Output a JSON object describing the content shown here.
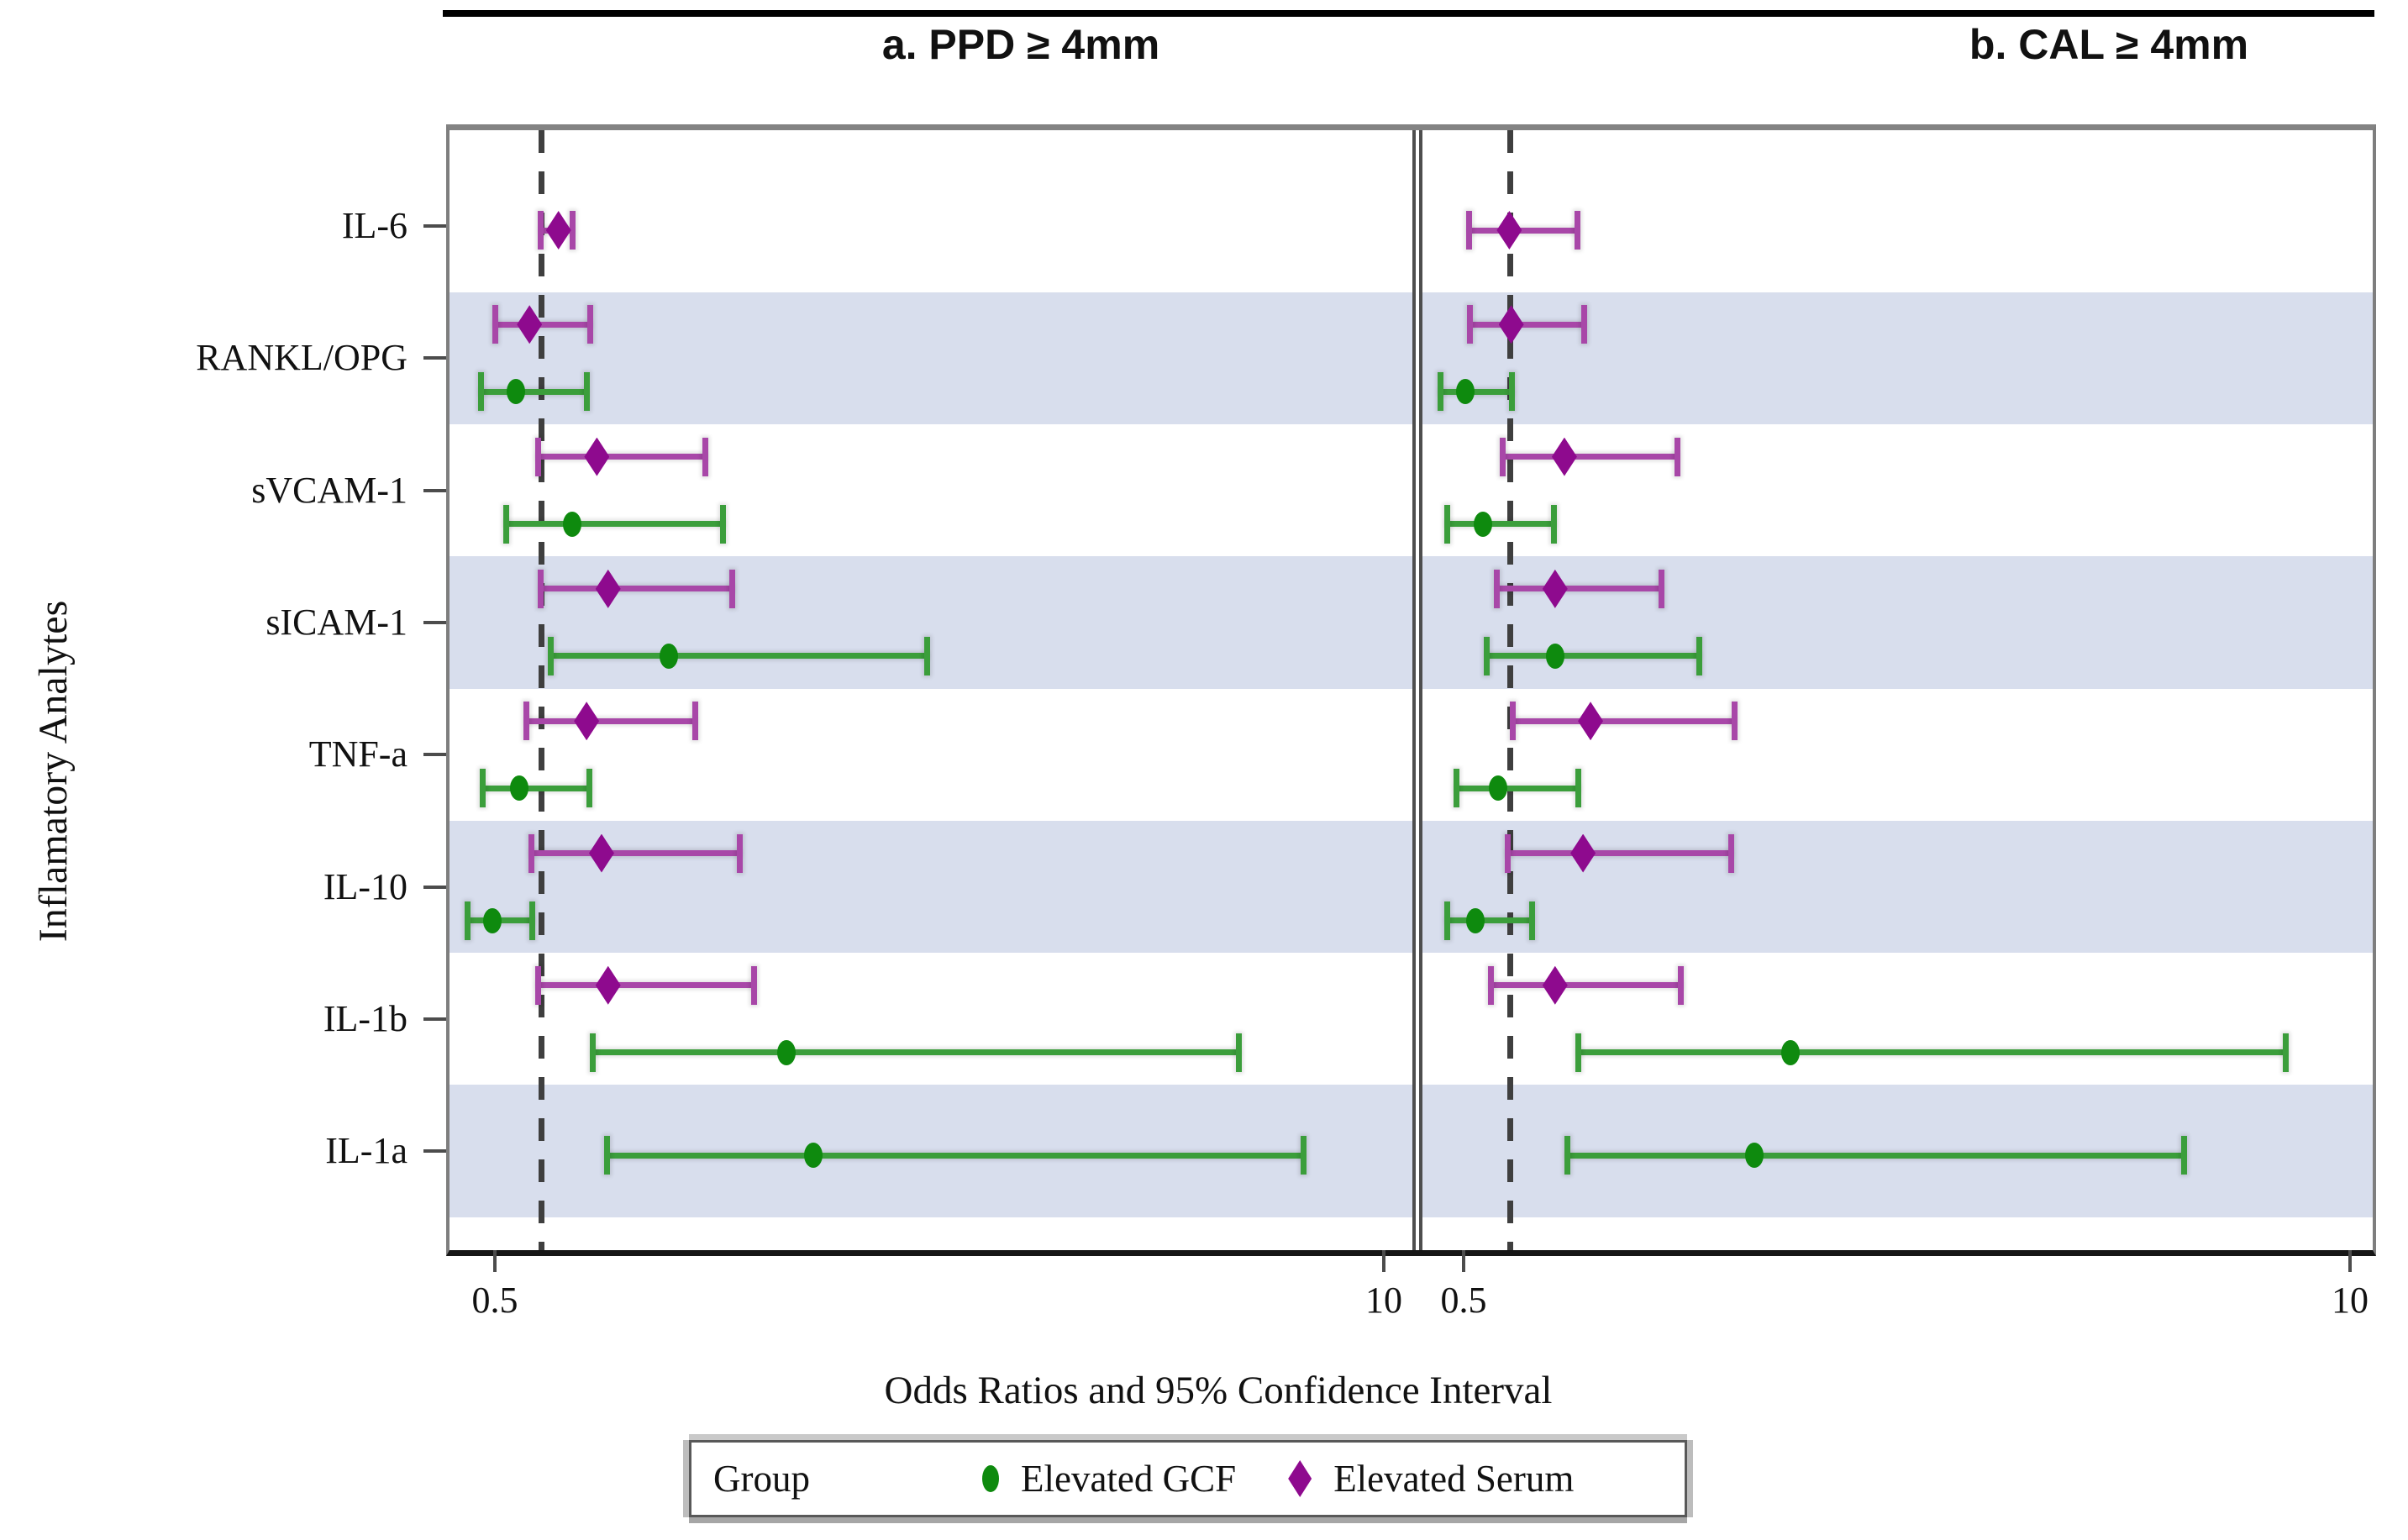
{
  "figure": {
    "y_axis_label": "Inflamatory Analytes",
    "x_axis_label": "Odds Ratios and 95% Confidence Interval"
  },
  "legend": {
    "title": "Group",
    "items": [
      {
        "label": "Elevated GCF",
        "marker": "circle-icon",
        "color": "#0E8A0E"
      },
      {
        "label": "Elevated Serum",
        "marker": "diamond-icon",
        "color": "#8E0A8E"
      }
    ]
  },
  "colors": {
    "gcf_marker": "#0E8A0E",
    "gcf_line": "#3B9E3B",
    "serum_marker": "#8E0A8E",
    "serum_line": "#A847A8",
    "band": "#D8DEED",
    "reference_line": "#3f3f3f"
  },
  "chart_data": {
    "type": "scatter",
    "subtype": "forest-plot-errorbars",
    "x_scale": "linear",
    "x_range": [
      0.5,
      10
    ],
    "x_ticks": [
      "0.5",
      "10"
    ],
    "reference_line_x": 1.0,
    "xlabel": "Odds Ratios and 95% Confidence Interval",
    "ylabel": "Inflamatory Analytes",
    "legend_position": "bottom",
    "grid": false,
    "categories": [
      "IL-6",
      "RANKL/OPG",
      "sVCAM-1",
      "sICAM-1",
      "TNF-a",
      "IL-10",
      "IL-1b",
      "IL-1a"
    ],
    "panels": [
      {
        "id": "a",
        "title": "a. PPD ≥ 4mm",
        "series": [
          {
            "name": "Elevated Serum",
            "values": [
              {
                "analyte": "IL-6",
                "or": 1.18,
                "lo": 0.99,
                "hi": 1.33
              },
              {
                "analyte": "RANKL/OPG",
                "or": 0.87,
                "lo": 0.5,
                "hi": 1.52
              },
              {
                "analyte": "sVCAM-1",
                "or": 1.59,
                "lo": 0.96,
                "hi": 2.75
              },
              {
                "analyte": "sICAM-1",
                "or": 1.71,
                "lo": 0.99,
                "hi": 3.04
              },
              {
                "analyte": "TNF-a",
                "or": 1.48,
                "lo": 0.84,
                "hi": 2.64
              },
              {
                "analyte": "IL-10",
                "or": 1.64,
                "lo": 0.89,
                "hi": 3.12
              },
              {
                "analyte": "IL-1b",
                "or": 1.71,
                "lo": 0.96,
                "hi": 3.27
              },
              {
                "analyte": "IL-1a",
                "or": null,
                "lo": null,
                "hi": null
              }
            ]
          },
          {
            "name": "Elevated GCF",
            "values": [
              {
                "analyte": "IL-6",
                "or": null,
                "lo": null,
                "hi": null
              },
              {
                "analyte": "RANKL/OPG",
                "or": 0.72,
                "lo": 0.35,
                "hi": 1.48
              },
              {
                "analyte": "sVCAM-1",
                "or": 1.33,
                "lo": 0.62,
                "hi": 2.94
              },
              {
                "analyte": "sICAM-1",
                "or": 2.36,
                "lo": 1.1,
                "hi": 5.12
              },
              {
                "analyte": "TNF-a",
                "or": 0.76,
                "lo": 0.37,
                "hi": 1.51
              },
              {
                "analyte": "IL-10",
                "or": 0.47,
                "lo": 0.21,
                "hi": 0.9
              },
              {
                "analyte": "IL-1b",
                "or": 3.62,
                "lo": 1.55,
                "hi": 8.45
              },
              {
                "analyte": "IL-1a",
                "or": 3.9,
                "lo": 1.7,
                "hi": 9.14
              }
            ]
          }
        ]
      },
      {
        "id": "b",
        "title": "b. CAL ≥ 4mm",
        "series": [
          {
            "name": "Elevated Serum",
            "values": [
              {
                "analyte": "IL-6",
                "or": 0.99,
                "lo": 0.56,
                "hi": 1.72
              },
              {
                "analyte": "RANKL/OPG",
                "or": 1.01,
                "lo": 0.57,
                "hi": 1.79
              },
              {
                "analyte": "sVCAM-1",
                "or": 1.58,
                "lo": 0.92,
                "hi": 2.79
              },
              {
                "analyte": "sICAM-1",
                "or": 1.48,
                "lo": 0.86,
                "hi": 2.62
              },
              {
                "analyte": "TNF-a",
                "or": 1.86,
                "lo": 1.03,
                "hi": 3.4
              },
              {
                "analyte": "IL-10",
                "or": 1.78,
                "lo": 0.97,
                "hi": 3.37
              },
              {
                "analyte": "IL-1b",
                "or": 1.48,
                "lo": 0.79,
                "hi": 2.83
              },
              {
                "analyte": "IL-1a",
                "or": null,
                "lo": null,
                "hi": null
              }
            ]
          },
          {
            "name": "Elevated GCF",
            "values": [
              {
                "analyte": "IL-6",
                "or": null,
                "lo": null,
                "hi": null
              },
              {
                "analyte": "RANKL/OPG",
                "or": 0.52,
                "lo": 0.25,
                "hi": 1.02
              },
              {
                "analyte": "sVCAM-1",
                "or": 0.71,
                "lo": 0.32,
                "hi": 1.47
              },
              {
                "analyte": "sICAM-1",
                "or": 1.48,
                "lo": 0.75,
                "hi": 3.03
              },
              {
                "analyte": "TNF-a",
                "or": 0.87,
                "lo": 0.42,
                "hi": 1.73
              },
              {
                "analyte": "IL-10",
                "or": 0.63,
                "lo": 0.32,
                "hi": 1.23
              },
              {
                "analyte": "IL-1b",
                "or": 4.0,
                "lo": 1.73,
                "hi": 9.31
              },
              {
                "analyte": "IL-1a",
                "or": 3.62,
                "lo": 1.61,
                "hi": 8.22
              }
            ]
          }
        ]
      }
    ]
  }
}
